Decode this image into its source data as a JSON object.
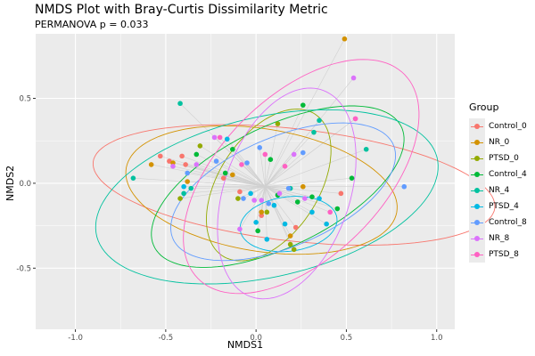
{
  "chart_data": {
    "type": "scatter",
    "title": "NMDS Plot with Bray-Curtis Dissimilarity Metric",
    "subtitle": "PERMANOVA p = 0.033",
    "xlabel": "NMDS1",
    "ylabel": "NMDS2",
    "xlim": [
      -1.22,
      1.1
    ],
    "ylim": [
      -0.86,
      0.88
    ],
    "xticks": [
      -1.0,
      -0.5,
      0.0,
      0.5,
      1.0
    ],
    "xtick_labels": [
      "-1.0",
      "-0.5",
      "0.0",
      "0.5",
      "1.0"
    ],
    "yticks": [
      -0.5,
      0.0,
      0.5
    ],
    "ytick_labels": [
      "-0.5",
      "0.0",
      "0.5"
    ],
    "legend_title": "Group",
    "legend_position": "right",
    "spider_center": [
      0.05,
      -0.02
    ],
    "series": [
      {
        "name": "Control_0",
        "color": "#F8766D",
        "ellipse": {
          "cx": 0.21,
          "cy": -0.01,
          "rx": 1.12,
          "ry": 0.33,
          "angle": -7
        },
        "points": [
          [
            -0.53,
            0.16
          ],
          [
            -0.48,
            0.13
          ],
          [
            -0.41,
            0.16
          ],
          [
            -0.39,
            0.11
          ],
          [
            -0.18,
            0.03
          ],
          [
            -0.09,
            -0.05
          ],
          [
            0.03,
            -0.19
          ],
          [
            0.22,
            -0.26
          ],
          [
            0.47,
            -0.06
          ]
        ]
      },
      {
        "name": "NR_0",
        "color": "#D39200",
        "ellipse": {
          "cx": 0.03,
          "cy": -0.04,
          "rx": 0.76,
          "ry": 0.36,
          "angle": -10
        },
        "points": [
          [
            -0.58,
            0.11
          ],
          [
            -0.46,
            0.12
          ],
          [
            -0.38,
            0.01
          ],
          [
            -0.13,
            0.05
          ],
          [
            0.03,
            -0.17
          ],
          [
            0.19,
            -0.31
          ],
          [
            0.26,
            -0.02
          ],
          [
            0.49,
            0.85
          ]
        ]
      },
      {
        "name": "PTSD_0",
        "color": "#93AA00",
        "ellipse": {
          "cx": 0.07,
          "cy": -0.01,
          "rx": 0.49,
          "ry": 0.28,
          "angle": 60
        },
        "points": [
          [
            -0.42,
            -0.09
          ],
          [
            -0.31,
            0.22
          ],
          [
            -0.1,
            -0.09
          ],
          [
            0.06,
            -0.17
          ],
          [
            0.12,
            0.35
          ],
          [
            0.19,
            -0.36
          ],
          [
            0.21,
            -0.39
          ]
        ]
      },
      {
        "name": "Control_4",
        "color": "#00BA38",
        "ellipse": {
          "cx": 0.12,
          "cy": -0.02,
          "rx": 0.77,
          "ry": 0.35,
          "angle": 28
        },
        "points": [
          [
            -0.33,
            0.17
          ],
          [
            -0.17,
            0.06
          ],
          [
            -0.13,
            0.2
          ],
          [
            0.01,
            -0.28
          ],
          [
            0.08,
            0.14
          ],
          [
            0.12,
            -0.07
          ],
          [
            0.23,
            -0.11
          ],
          [
            0.26,
            0.46
          ],
          [
            0.31,
            -0.08
          ],
          [
            0.45,
            -0.15
          ],
          [
            0.53,
            0.03
          ]
        ]
      },
      {
        "name": "NR_4",
        "color": "#00C19F",
        "ellipse": {
          "cx": 0.06,
          "cy": -0.08,
          "rx": 0.97,
          "ry": 0.47,
          "angle": 14
        },
        "points": [
          [
            -0.68,
            0.03
          ],
          [
            -0.42,
            0.47
          ],
          [
            -0.4,
            -0.06
          ],
          [
            -0.36,
            -0.03
          ],
          [
            0.19,
            -0.03
          ],
          [
            0.32,
            0.3
          ],
          [
            0.35,
            0.37
          ],
          [
            0.61,
            0.2
          ]
        ]
      },
      {
        "name": "PTSD_4",
        "color": "#00B9E3",
        "ellipse": {
          "cx": 0.18,
          "cy": -0.24,
          "rx": 0.27,
          "ry": 0.16,
          "angle": 8
        },
        "points": [
          [
            -0.4,
            -0.02
          ],
          [
            -0.16,
            0.26
          ],
          [
            -0.03,
            -0.06
          ],
          [
            0.0,
            -0.23
          ],
          [
            0.06,
            -0.33
          ],
          [
            0.1,
            -0.13
          ],
          [
            0.16,
            -0.24
          ],
          [
            0.31,
            -0.17
          ],
          [
            0.35,
            -0.09
          ],
          [
            0.39,
            -0.24
          ]
        ]
      },
      {
        "name": "Control_8",
        "color": "#619CFF",
        "ellipse": {
          "cx": 0.15,
          "cy": -0.05,
          "rx": 0.67,
          "ry": 0.32,
          "angle": 25
        },
        "points": [
          [
            -0.38,
            0.06
          ],
          [
            -0.22,
            0.13
          ],
          [
            -0.07,
            -0.09
          ],
          [
            -0.05,
            0.12
          ],
          [
            0.02,
            0.21
          ],
          [
            0.07,
            -0.12
          ],
          [
            0.18,
            -0.03
          ],
          [
            0.26,
            0.18
          ],
          [
            0.82,
            -0.02
          ]
        ]
      },
      {
        "name": "NR_8",
        "color": "#DB72FB",
        "ellipse": {
          "cx": 0.17,
          "cy": -0.06,
          "rx": 0.64,
          "ry": 0.35,
          "angle": 73
        },
        "points": [
          [
            -0.46,
            0.1
          ],
          [
            -0.33,
            0.11
          ],
          [
            -0.23,
            0.27
          ],
          [
            -0.09,
            -0.27
          ],
          [
            -0.01,
            -0.1
          ],
          [
            0.03,
            -0.1
          ],
          [
            0.13,
            -0.06
          ],
          [
            0.21,
            0.17
          ],
          [
            0.27,
            -0.09
          ],
          [
            0.54,
            0.62
          ],
          [
            0.55,
            0.38
          ]
        ]
      },
      {
        "name": "PTSD_8",
        "color": "#FF61C3",
        "ellipse": {
          "cx": 0.25,
          "cy": 0.04,
          "rx": 0.83,
          "ry": 0.46,
          "angle": 48
        },
        "points": [
          [
            -0.2,
            0.27
          ],
          [
            -0.08,
            0.11
          ],
          [
            0.05,
            0.17
          ],
          [
            0.16,
            0.1
          ],
          [
            0.41,
            -0.17
          ],
          [
            0.55,
            0.38
          ]
        ]
      }
    ]
  }
}
